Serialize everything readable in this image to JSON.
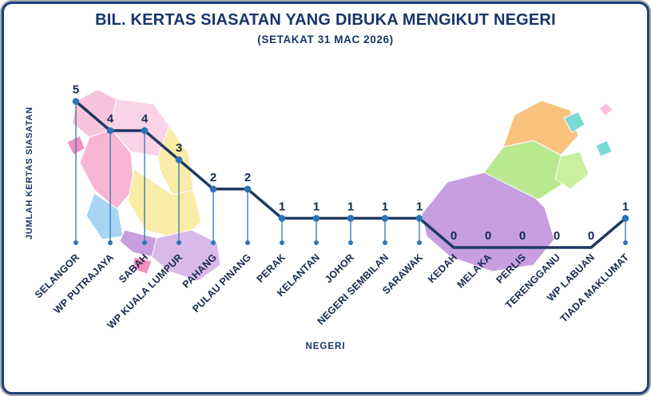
{
  "chart_data": {
    "type": "line",
    "title": "BIL. KERTAS SIASATAN YANG DIBUKA MENGIKUT NEGERI",
    "subtitle": "(SETAKAT 31 MAC 2026)",
    "xlabel": "NEGERI",
    "ylabel": "JUMLAH KERTAS SIASATAN",
    "categories": [
      "SELANGOR",
      "WP PUTRAJAYA",
      "SABAH",
      "WP KUALA LUMPUR",
      "PAHANG",
      "PULAU PINANG",
      "PERAK",
      "KELANTAN",
      "JOHOR",
      "NEGERI SEMBILAN",
      "SARAWAK",
      "KEDAH",
      "MELAKA",
      "PERLIS",
      "TERENGGANU",
      "WP LABUAN",
      "TIADA MAKLUMAT"
    ],
    "values": [
      5,
      4,
      4,
      3,
      2,
      2,
      1,
      1,
      1,
      1,
      1,
      0,
      0,
      0,
      0,
      0,
      1
    ],
    "ylim": [
      0,
      5
    ],
    "grid": false,
    "legend": false,
    "line_color": "#1f3864",
    "marker_color": "#2e75b6"
  },
  "colors": {
    "accent": "#17356b",
    "line": "#1f3864",
    "marker": "#2e75b6",
    "border": "#20407a",
    "background": "#ffffff"
  }
}
